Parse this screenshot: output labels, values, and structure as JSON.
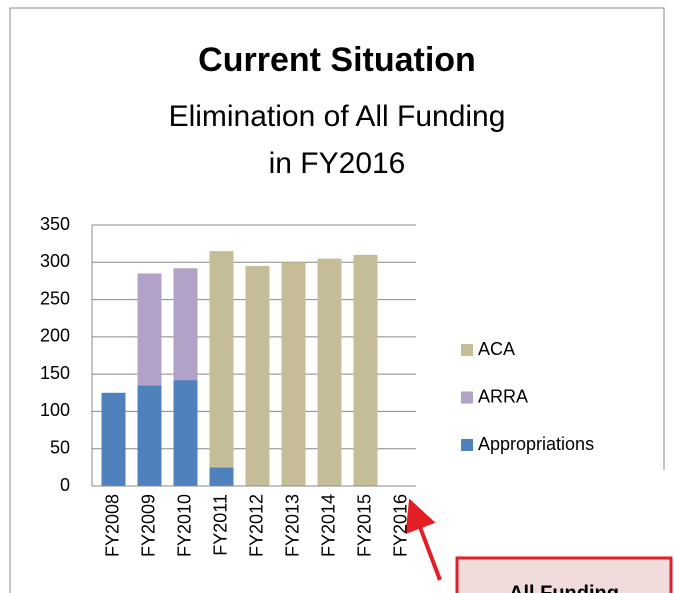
{
  "chart_data": {
    "type": "stacked_bar",
    "title": "Current Situation",
    "subtitle": [
      "Elimination of All Funding",
      "in FY2016"
    ],
    "categories": [
      "FY2008",
      "FY2009",
      "FY2010",
      "FY2011",
      "FY2012",
      "FY2013",
      "FY2014",
      "FY2015",
      "FY2016"
    ],
    "series": [
      {
        "name": "Appropriations",
        "color": "#4f81bd",
        "values": [
          125,
          135,
          142,
          25,
          0,
          0,
          0,
          0,
          0
        ]
      },
      {
        "name": "ARRA",
        "color": "#b3a2c7",
        "values": [
          0,
          150,
          150,
          0,
          0,
          0,
          0,
          0,
          0
        ]
      },
      {
        "name": "ACA",
        "color": "#c4bd97",
        "values": [
          0,
          0,
          0,
          290,
          295,
          300,
          305,
          310,
          0
        ]
      }
    ],
    "ylim": [
      0,
      350
    ],
    "yticks": [
      0,
      50,
      100,
      150,
      200,
      250,
      300,
      350
    ],
    "grid": true,
    "legend": "right",
    "annotation": "All Funding"
  }
}
